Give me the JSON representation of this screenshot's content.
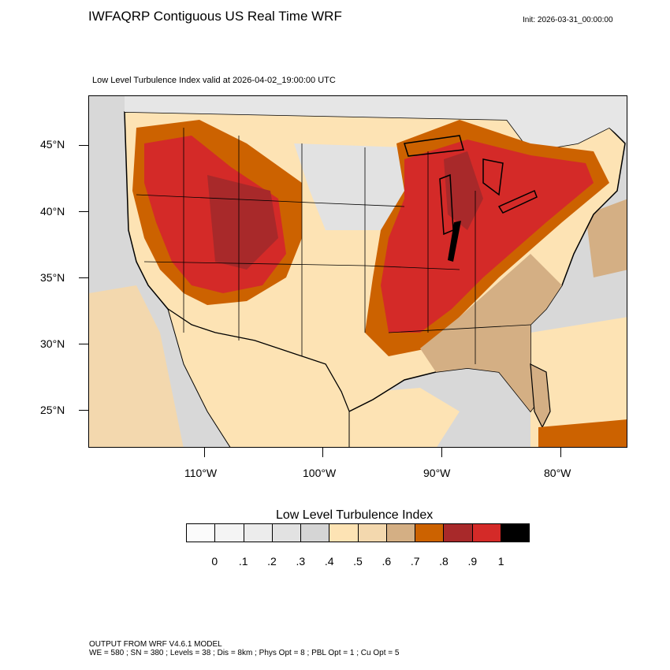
{
  "header": {
    "title": "IWFAQRP Contiguous US Real Time WRF",
    "init": "Init: 2026-03-31_00:00:00",
    "subtitle": "Low Level Turbulence Index valid at 2026-04-02_19:00:00 UTC"
  },
  "map": {
    "lat_labels": [
      "45°N",
      "40°N",
      "35°N",
      "30°N",
      "25°N"
    ],
    "lon_labels": [
      "110°W",
      "100°W",
      "90°W",
      "80°W"
    ]
  },
  "colorbar": {
    "title": "Low Level Turbulence Index",
    "labels": [
      "0",
      ".1",
      ".2",
      ".3",
      ".4",
      ".5",
      ".6",
      ".7",
      ".8",
      ".9",
      "1"
    ],
    "colors": [
      "#fbfbfb",
      "#f4f4f4",
      "#ececec",
      "#e2e2e2",
      "#d5d5d5",
      "#fde3b4",
      "#f3d8ae",
      "#d4af84",
      "#cc6200",
      "#a8292a",
      "#d42a28",
      "#000000"
    ]
  },
  "footer": {
    "line1": "OUTPUT FROM WRF V4.6.1 MODEL",
    "line2": "WE = 580 ; SN = 380 ; Levels = 38 ; Dis = 8km ; Phys Opt = 8 ; PBL Opt = 1 ; Cu Opt = 5"
  }
}
